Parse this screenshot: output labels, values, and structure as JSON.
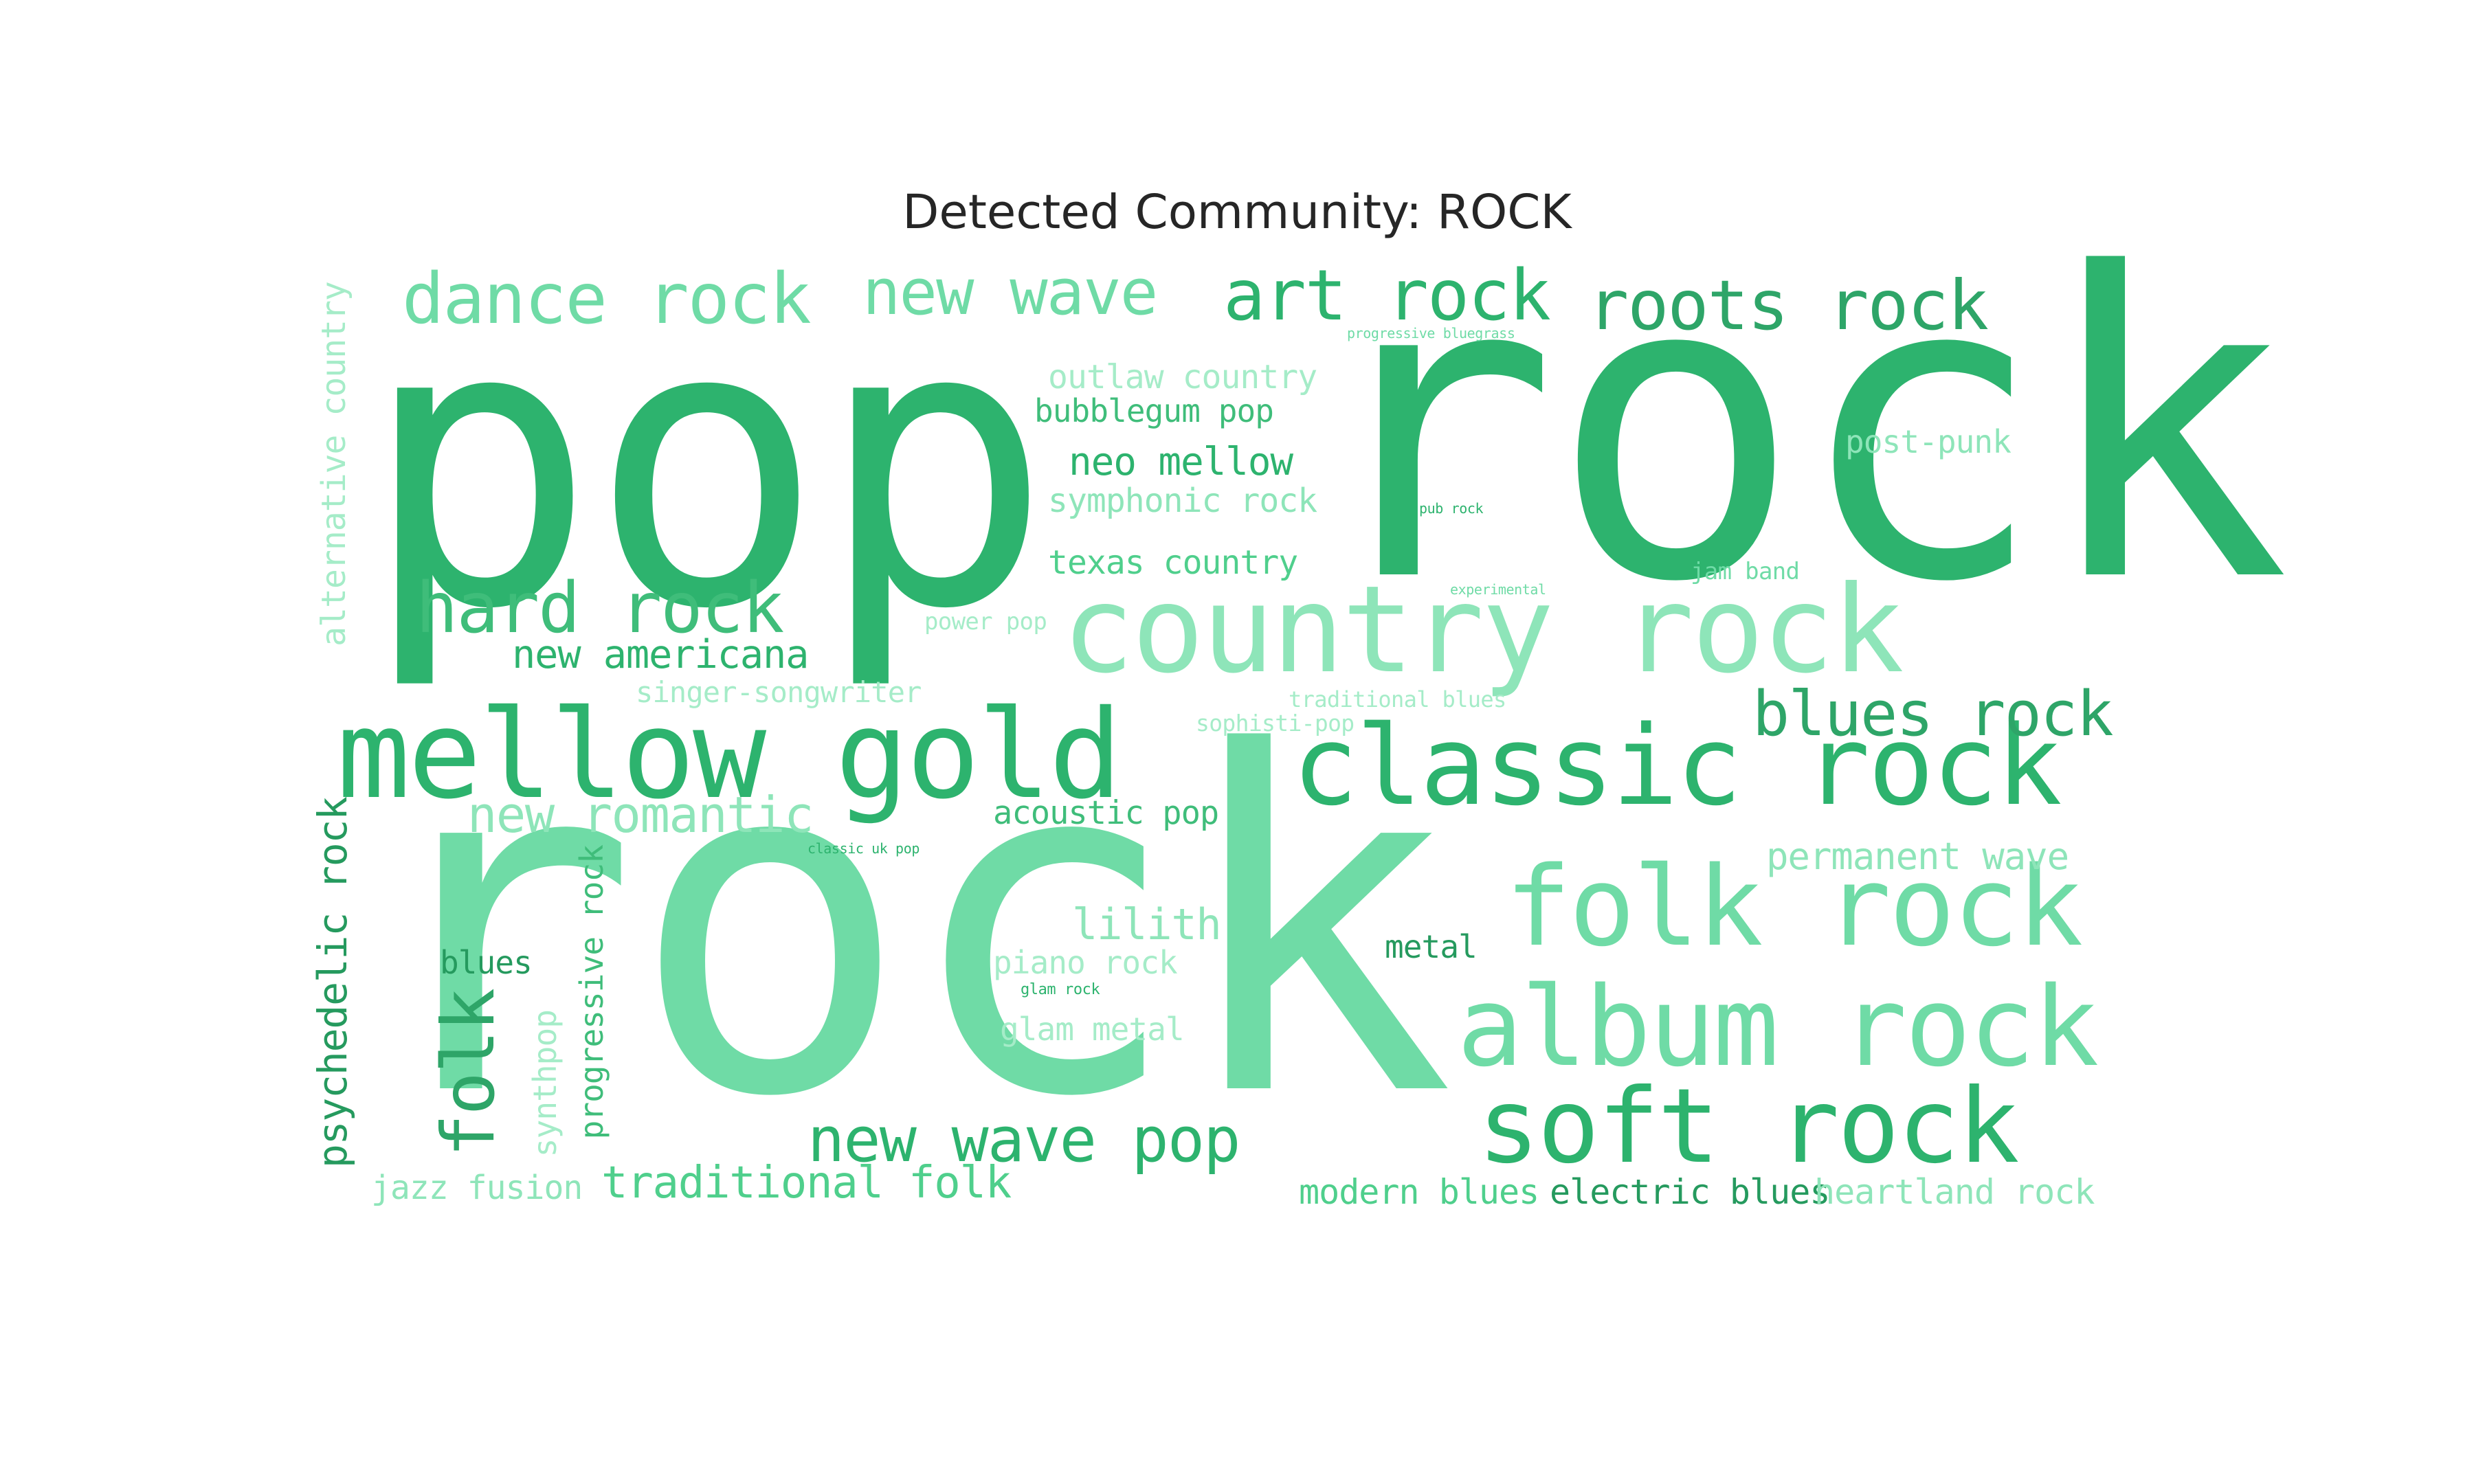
{
  "title": "Detected Community: ROCK",
  "words": [
    {
      "text": "pop",
      "c": "c0",
      "v": false
    },
    {
      "text": "rock",
      "c": "c0",
      "v": false
    },
    {
      "text": "rock",
      "c": "c1",
      "v": false
    },
    {
      "text": "country rock",
      "c": "c3",
      "v": false
    },
    {
      "text": "mellow gold",
      "c": "c0",
      "v": false
    },
    {
      "text": "classic rock",
      "c": "c0",
      "v": false
    },
    {
      "text": "folk rock",
      "c": "c1",
      "v": false
    },
    {
      "text": "album rock",
      "c": "c1",
      "v": false
    },
    {
      "text": "soft rock",
      "c": "c0",
      "v": false
    },
    {
      "text": "dance rock",
      "c": "c1",
      "v": false
    },
    {
      "text": "new wave",
      "c": "c1",
      "v": false
    },
    {
      "text": "art rock",
      "c": "c0",
      "v": false
    },
    {
      "text": "roots rock",
      "c": "c4",
      "v": false
    },
    {
      "text": "hard rock",
      "c": "c2",
      "v": false
    },
    {
      "text": "blues rock",
      "c": "c4",
      "v": false
    },
    {
      "text": "new wave pop",
      "c": "c0",
      "v": false
    },
    {
      "text": "new romantic",
      "c": "c3",
      "v": false
    },
    {
      "text": "traditional folk",
      "c": "c7",
      "v": false
    },
    {
      "text": "new americana",
      "c": "c0",
      "v": false
    },
    {
      "text": "outlaw country",
      "c": "c5",
      "v": false
    },
    {
      "text": "bubblegum pop",
      "c": "c2",
      "v": false
    },
    {
      "text": "neo mellow",
      "c": "c0",
      "v": false
    },
    {
      "text": "symphonic rock",
      "c": "c3",
      "v": false
    },
    {
      "text": "texas country",
      "c": "c7",
      "v": false
    },
    {
      "text": "post-punk",
      "c": "c3",
      "v": false
    },
    {
      "text": "progressive bluegrass",
      "c": "c1",
      "v": false
    },
    {
      "text": "pub rock",
      "c": "c0",
      "v": false
    },
    {
      "text": "experimental",
      "c": "c1",
      "v": false
    },
    {
      "text": "jam band",
      "c": "c1",
      "v": false
    },
    {
      "text": "power pop",
      "c": "c5",
      "v": false
    },
    {
      "text": "singer-songwriter",
      "c": "c5",
      "v": false
    },
    {
      "text": "traditional blues",
      "c": "c5",
      "v": false
    },
    {
      "text": "sophisti-pop",
      "c": "c5",
      "v": false
    },
    {
      "text": "acoustic pop",
      "c": "c2",
      "v": false
    },
    {
      "text": "classic uk pop",
      "c": "c0",
      "v": false
    },
    {
      "text": "permanent wave",
      "c": "c3",
      "v": false
    },
    {
      "text": "lilith",
      "c": "c3",
      "v": false
    },
    {
      "text": "piano rock",
      "c": "c5",
      "v": false
    },
    {
      "text": "glam rock",
      "c": "c0",
      "v": false
    },
    {
      "text": "glam metal",
      "c": "c5",
      "v": false
    },
    {
      "text": "metal",
      "c": "c6",
      "v": false
    },
    {
      "text": "blues",
      "c": "c6",
      "v": false
    },
    {
      "text": "modern blues",
      "c": "c7",
      "v": false
    },
    {
      "text": "electric blues",
      "c": "c6",
      "v": false
    },
    {
      "text": "heartland rock",
      "c": "c3",
      "v": false
    },
    {
      "text": "jazz fusion",
      "c": "c3",
      "v": false
    },
    {
      "text": "alternative country",
      "c": "c5",
      "v": true
    },
    {
      "text": "psychedelic rock",
      "c": "c6",
      "v": true
    },
    {
      "text": "folk",
      "c": "c4",
      "v": true
    },
    {
      "text": "synthpop",
      "c": "c5",
      "v": true
    },
    {
      "text": "progressive rock",
      "c": "c2",
      "v": true
    }
  ]
}
